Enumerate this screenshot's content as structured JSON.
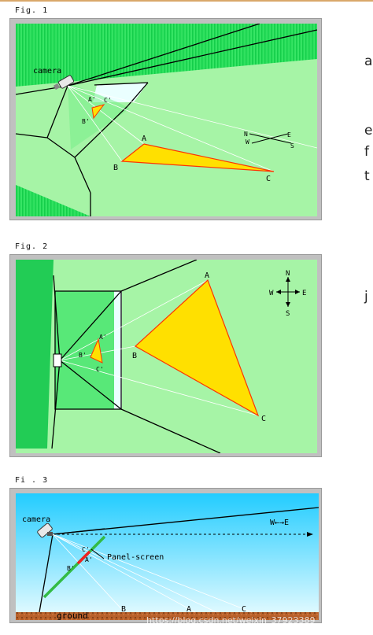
{
  "figures": [
    {
      "label": "Fig. 1",
      "camera_label": "camera",
      "points": {
        "A": "A",
        "B": "B",
        "C": "C",
        "Ap": "A'",
        "Bp": "B'",
        "Cp": "C'"
      },
      "compass": {
        "N": "N",
        "W": "W",
        "E": "E",
        "S": "S"
      }
    },
    {
      "label": "Fig. 2",
      "points": {
        "A": "A",
        "B": "B",
        "C": "C",
        "Ap": "A'",
        "Bp": "B'",
        "Cp": "C'"
      },
      "compass": {
        "N": "N",
        "W": "W",
        "E": "E",
        "S": "S"
      }
    },
    {
      "label": "Fi . 3",
      "camera_label": "camera",
      "panel_label": "Panel-screen",
      "ground_label": "ground",
      "direction_label": "W←→E",
      "points": {
        "A": "A",
        "B": "B",
        "C": "C",
        "Ap": "A'",
        "Bp": "B'",
        "Cp": "C'"
      }
    }
  ],
  "side_text": [
    "a",
    "e",
    "f",
    "t",
    "j"
  ],
  "watermark": "https://blog.csdn.net/weixin_37923389",
  "colors": {
    "panel_gray": "#c0c0c0",
    "light_green": "#a6f4a6",
    "bright_green": "#22dd55",
    "mid_green": "#58e878",
    "triangle_fill": "#ffe000",
    "triangle_edge": "#ff3300",
    "sky_top": "#22ccff",
    "sky_bottom": "#eafcff",
    "ground_brown": "#b8602a"
  }
}
